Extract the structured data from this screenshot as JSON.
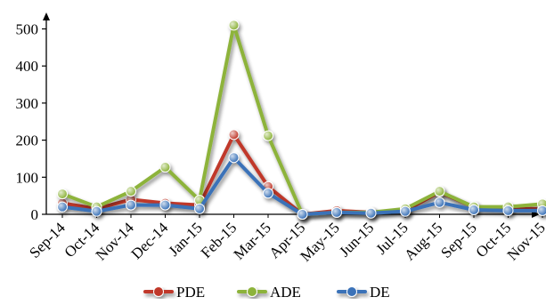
{
  "chart_data": {
    "type": "line",
    "categories": [
      "Sep-14",
      "Oct-14",
      "Nov-14",
      "Dec-14",
      "Jan-15",
      "Feb-15",
      "Mar-15",
      "Apr-15",
      "May-15",
      "Jun-15",
      "Jul-15",
      "Aug-15",
      "Sep-15",
      "Oct-15",
      "Nov-15"
    ],
    "series": [
      {
        "name": "PDE",
        "color": "#c0392b",
        "values": [
          30,
          15,
          40,
          30,
          25,
          215,
          75,
          0,
          10,
          5,
          10,
          60,
          20,
          15,
          15
        ]
      },
      {
        "name": "ADE",
        "color": "#8db33a",
        "values": [
          55,
          20,
          62,
          127,
          38,
          510,
          212,
          0,
          5,
          5,
          15,
          62,
          20,
          20,
          28
        ]
      },
      {
        "name": "DE",
        "color": "#3a72b8",
        "values": [
          20,
          8,
          25,
          25,
          15,
          153,
          57,
          0,
          5,
          3,
          8,
          32,
          12,
          10,
          10
        ]
      }
    ],
    "yticks": [
      0,
      100,
      200,
      300,
      400,
      500
    ],
    "ylim": [
      0,
      530
    ],
    "legend_position": "bottom",
    "grid": false
  }
}
